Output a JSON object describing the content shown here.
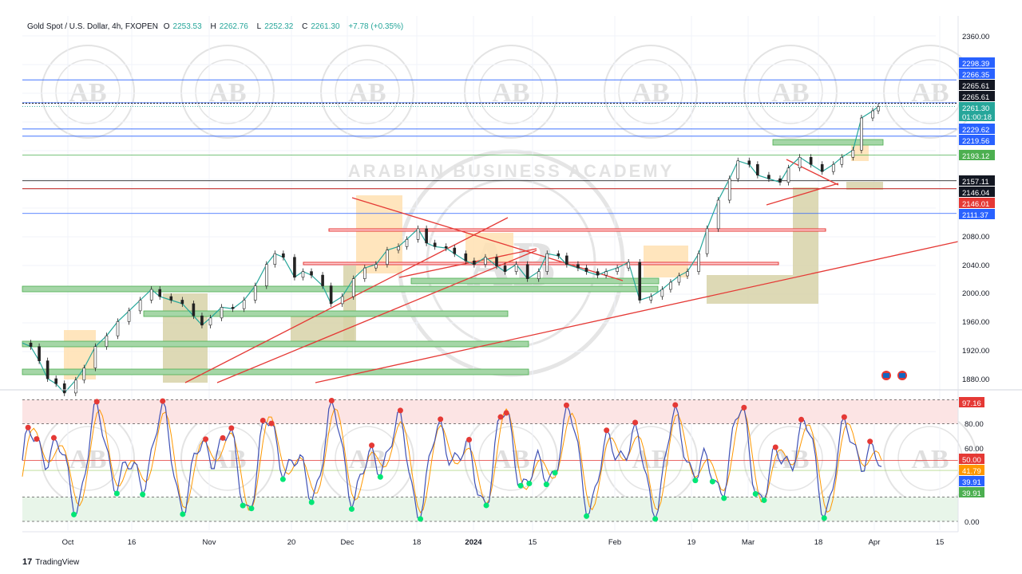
{
  "header": {
    "symbol": "Gold Spot / U.S. Dollar, 4h, FXOPEN",
    "open_label": "O",
    "open": "2253.53",
    "high_label": "H",
    "high": "2262.76",
    "low_label": "L",
    "low": "2252.32",
    "close_label": "C",
    "close": "2261.30",
    "change": "+7.78 (+0.35%)"
  },
  "watermark": {
    "logo_text": "AB",
    "ring_text": "ARABIAN BUSINESS ACADEMY"
  },
  "footer": {
    "brand": "TradingView"
  },
  "colors": {
    "up": "#26a69a",
    "down": "#ef5350",
    "blue_line": "#2962ff",
    "green_zone": "#4caf50",
    "red_line": "#e53935",
    "orange_line": "#ff9800",
    "overbought_zone": "#fce4e4",
    "oversold_zone": "#e8f5e9"
  },
  "chart_data": [
    {
      "type": "line",
      "title": "Gold Spot / U.S. Dollar, 4h, FXOPEN",
      "x_ticks": [
        "Oct",
        "16",
        "Nov",
        "20",
        "Dec",
        "18",
        "2024",
        "15",
        "Feb",
        "19",
        "Mar",
        "18",
        "Apr",
        "15"
      ],
      "y_ticks": [
        1880,
        1920,
        1960,
        2000,
        2040,
        2080,
        2360
      ],
      "ylim": [
        1872,
        2372
      ],
      "price_path": [
        [
          0,
          1930
        ],
        [
          3,
          1925
        ],
        [
          6,
          1905
        ],
        [
          9,
          1880
        ],
        [
          12,
          1873
        ],
        [
          15,
          1860
        ],
        [
          19,
          1878
        ],
        [
          22,
          1895
        ],
        [
          26,
          1925
        ],
        [
          30,
          1940
        ],
        [
          34,
          1960
        ],
        [
          38,
          1975
        ],
        [
          42,
          1990
        ],
        [
          46,
          2005
        ],
        [
          49,
          1995
        ],
        [
          53,
          1990
        ],
        [
          57,
          1985
        ],
        [
          61,
          1968
        ],
        [
          64,
          1955
        ],
        [
          67,
          1965
        ],
        [
          71,
          1980
        ],
        [
          75,
          1978
        ],
        [
          79,
          1990
        ],
        [
          83,
          2010
        ],
        [
          87,
          2040
        ],
        [
          90,
          2055
        ],
        [
          93,
          2050
        ],
        [
          97,
          2022
        ],
        [
          100,
          2030
        ],
        [
          103,
          2025
        ],
        [
          107,
          2010
        ],
        [
          110,
          1985
        ],
        [
          114,
          1995
        ],
        [
          118,
          2020
        ],
        [
          122,
          2035
        ],
        [
          126,
          2040
        ],
        [
          130,
          2060
        ],
        [
          134,
          2065
        ],
        [
          137,
          2075
        ],
        [
          141,
          2090
        ],
        [
          144,
          2070
        ],
        [
          147,
          2065
        ],
        [
          151,
          2063
        ],
        [
          154,
          2055
        ],
        [
          158,
          2045
        ],
        [
          161,
          2040
        ],
        [
          165,
          2050
        ],
        [
          169,
          2038
        ],
        [
          172,
          2030
        ],
        [
          176,
          2040
        ],
        [
          180,
          2020
        ],
        [
          184,
          2030
        ],
        [
          187,
          2055
        ],
        [
          191,
          2052
        ],
        [
          194,
          2040
        ],
        [
          198,
          2035
        ],
        [
          201,
          2030
        ],
        [
          205,
          2025
        ],
        [
          208,
          2030
        ],
        [
          212,
          2035
        ],
        [
          216,
          2043
        ],
        [
          220,
          1990
        ],
        [
          224,
          1995
        ],
        [
          228,
          2005
        ],
        [
          231,
          2015
        ],
        [
          234,
          2024
        ],
        [
          237,
          2030
        ],
        [
          241,
          2055
        ],
        [
          244,
          2090
        ],
        [
          248,
          2130
        ],
        [
          252,
          2160
        ],
        [
          255,
          2185
        ],
        [
          259,
          2180
        ],
        [
          262,
          2165
        ],
        [
          266,
          2160
        ],
        [
          270,
          2155
        ],
        [
          273,
          2175
        ],
        [
          277,
          2190
        ],
        [
          281,
          2180
        ],
        [
          285,
          2170
        ],
        [
          289,
          2180
        ],
        [
          292,
          2190
        ],
        [
          296,
          2200
        ],
        [
          299,
          2245
        ],
        [
          303,
          2255
        ],
        [
          305,
          2261
        ]
      ],
      "horizontal_levels": [
        2298.39,
        2266.35,
        2265.61,
        2261.3,
        2229.62,
        2219.56,
        2193.12,
        2157.11,
        2146.04,
        2146.01,
        2111.37
      ],
      "price_labels": [
        {
          "value": "2360.00",
          "kind": "tick"
        },
        {
          "value": "2298.39",
          "kind": "blue"
        },
        {
          "value": "2266.35",
          "kind": "blue"
        },
        {
          "value": "2265.61",
          "kind": "black"
        },
        {
          "value": "2265.61",
          "kind": "black"
        },
        {
          "value": "2261.30",
          "kind": "teal"
        },
        {
          "value": "01:00:18",
          "kind": "teal"
        },
        {
          "value": "2229.62",
          "kind": "blue"
        },
        {
          "value": "2219.56",
          "kind": "blue"
        },
        {
          "value": "2193.12",
          "kind": "green"
        },
        {
          "value": "2157.11",
          "kind": "black"
        },
        {
          "value": "2146.04",
          "kind": "black"
        },
        {
          "value": "2146.01",
          "kind": "red"
        },
        {
          "value": "2111.37",
          "kind": "blue"
        },
        {
          "value": "2080.00",
          "kind": "tick"
        },
        {
          "value": "2040.00",
          "kind": "tick"
        },
        {
          "value": "2000.00",
          "kind": "tick"
        },
        {
          "value": "1960.00",
          "kind": "tick"
        },
        {
          "value": "1920.00",
          "kind": "tick"
        },
        {
          "value": "1880.00",
          "kind": "tick"
        }
      ],
      "grid": true
    },
    {
      "type": "line",
      "y_ticks": [
        "80.00",
        "60.00",
        "0.00"
      ],
      "ylim": [
        -2,
        102
      ],
      "overbought": 97.16,
      "upper_band": 80,
      "mid": 50,
      "lower_band": 20,
      "zero": 0,
      "value_labels": [
        {
          "value": "97.16",
          "kind": "red"
        },
        {
          "value": "50.00",
          "kind": "red"
        },
        {
          "value": "41.79",
          "kind": "orange"
        },
        {
          "value": "39.91",
          "kind": "blue"
        },
        {
          "value": "39.91",
          "kind": "green"
        }
      ],
      "grid": true
    }
  ]
}
